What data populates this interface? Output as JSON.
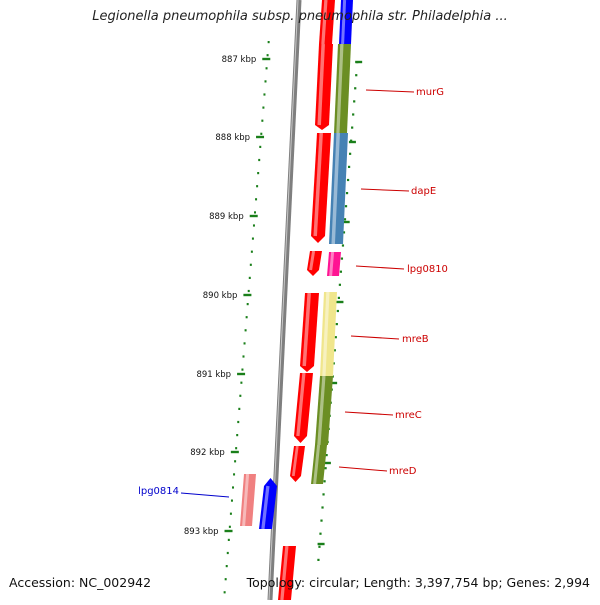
{
  "title": "Legionella pneumophila subsp. pneumophila str. Philadelphia ...",
  "footer": {
    "accession": "Accession: NC_002942",
    "summary": "Topology: circular; Length: 3,397,754 bp; Genes: 2,994"
  },
  "ruler": {
    "unit": "kbp",
    "ticks": [
      {
        "label": "887 kbp",
        "kbp": 887
      },
      {
        "label": "888 kbp",
        "kbp": 888
      },
      {
        "label": "889 kbp",
        "kbp": 889
      },
      {
        "label": "890 kbp",
        "kbp": 890
      },
      {
        "label": "891 kbp",
        "kbp": 891
      },
      {
        "label": "892 kbp",
        "kbp": 892
      },
      {
        "label": "893 kbp",
        "kbp": 893
      }
    ]
  },
  "colors": {
    "backbone": "#7f7f7f",
    "forward_feature": "#ff0000",
    "reverse_feature": "#0000ff",
    "ruler": "#1a7f1a",
    "label_forward": "#cc0000",
    "label_reverse": "#0000cc",
    "murG": "#6b8e23",
    "dapE": "#4682b4",
    "lpg0810": "#ff1493",
    "mreB": "#f0e68c",
    "mreC": "#6b8e23",
    "mreD": "#6b8e23",
    "lpg0814": "#f08080"
  },
  "genes": [
    {
      "name": "murG",
      "strand": "forward",
      "color_key": "murG"
    },
    {
      "name": "dapE",
      "strand": "forward",
      "color_key": "dapE"
    },
    {
      "name": "lpg0810",
      "strand": "forward",
      "color_key": "lpg0810"
    },
    {
      "name": "mreB",
      "strand": "forward",
      "color_key": "mreB"
    },
    {
      "name": "mreC",
      "strand": "forward",
      "color_key": "mreC"
    },
    {
      "name": "mreD",
      "strand": "forward",
      "color_key": "mreD"
    },
    {
      "name": "lpg0814",
      "strand": "reverse",
      "color_key": "lpg0814"
    }
  ]
}
